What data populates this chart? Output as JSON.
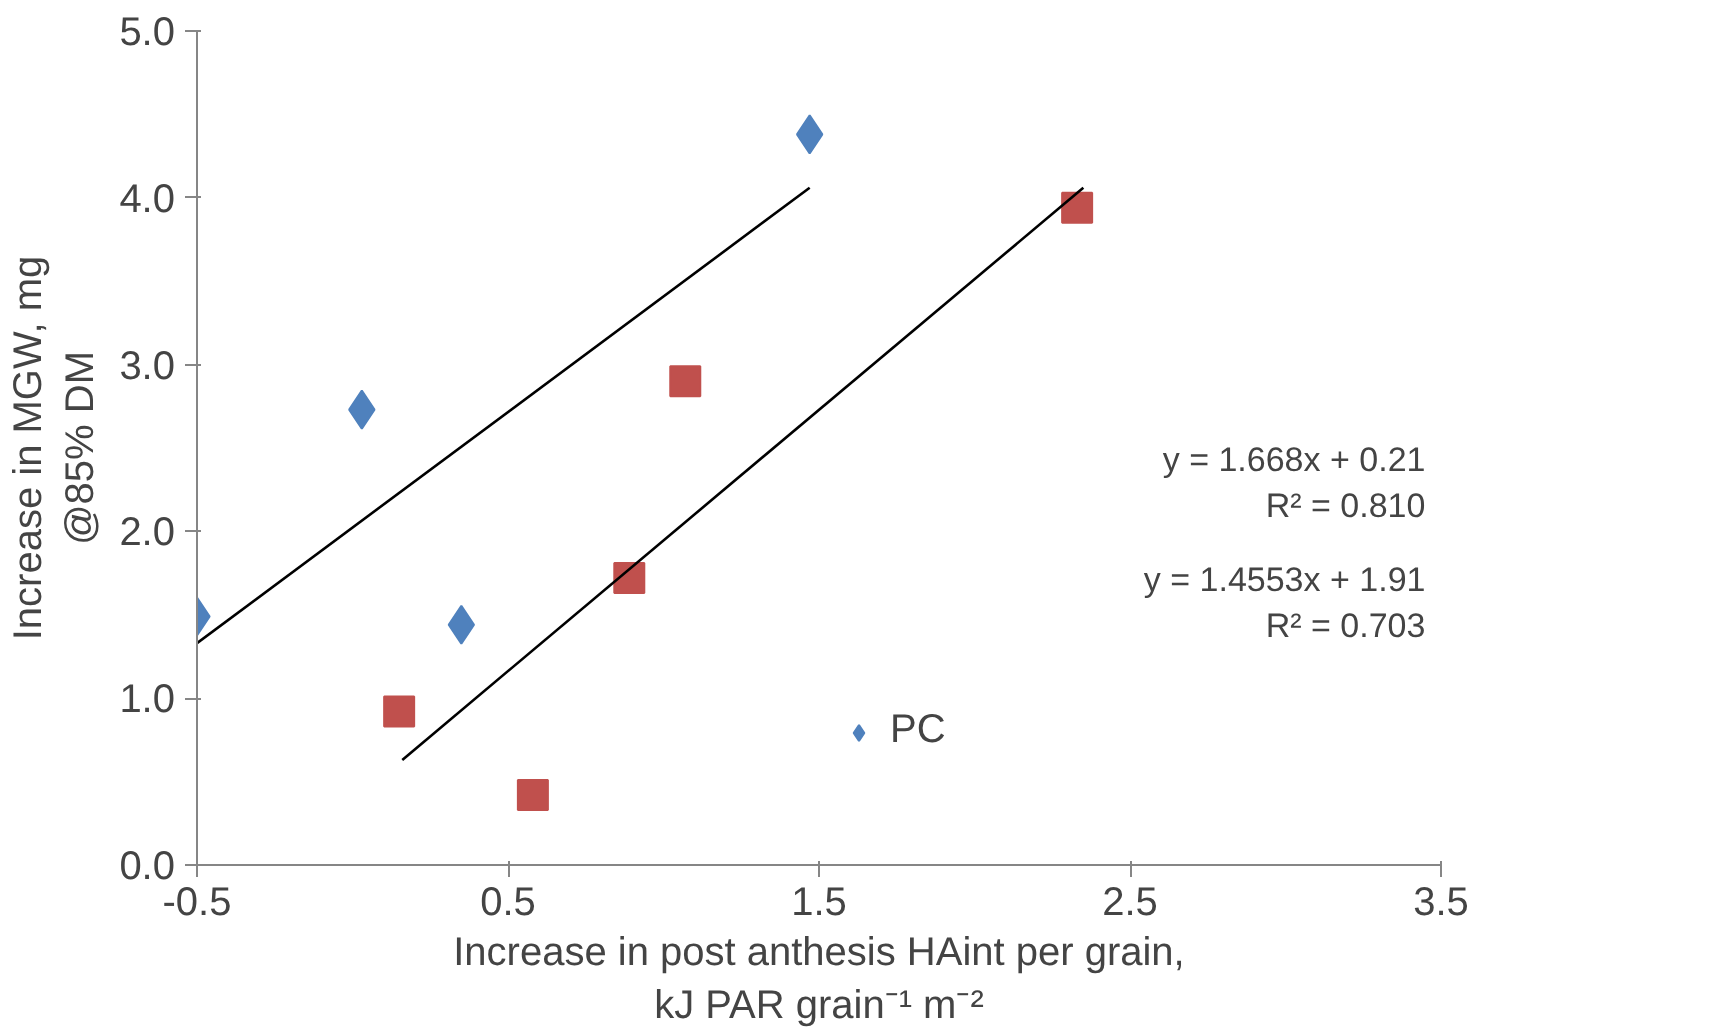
{
  "chart_data": {
    "type": "scatter",
    "xlabel": "Increase in post anthesis HAint per grain,\nkJ PAR grain⁻¹ m⁻²",
    "ylabel": "Increase in MGW, mg\n@85% DM",
    "xlim": [
      -0.5,
      3.5
    ],
    "xticks": [
      -0.5,
      0.5,
      1.5,
      2.5,
      3.5
    ],
    "ylim": [
      0,
      5
    ],
    "yticks": [
      {
        "value": 0,
        "label": "0.0"
      },
      {
        "value": 1,
        "label": "1.0"
      },
      {
        "value": 2,
        "label": "2.0"
      },
      {
        "value": 3,
        "label": "3.0"
      },
      {
        "value": 4,
        "label": "4.0"
      },
      {
        "value": 5,
        "label": "5.0"
      }
    ],
    "grid": false,
    "legend": "right",
    "series": [
      {
        "color": "#c0504d",
        "marker": "square",
        "x": [
          0.15,
          0.58,
          0.89,
          1.07,
          2.33
        ],
        "values": [
          0.92,
          0.42,
          1.72,
          2.9,
          3.94
        ]
      },
      {
        "name": "PC",
        "color": "#4f81bd",
        "marker": "diamond",
        "x": [
          -0.5,
          0.03,
          0.35,
          1.47
        ],
        "values": [
          1.49,
          2.73,
          1.44,
          4.38
        ]
      },
      {
        "type": "line",
        "color": "#000000",
        "x": [
          -0.5,
          1.47
        ],
        "values": [
          1.33,
          4.06
        ]
      },
      {
        "type": "line",
        "color": "#000000",
        "x": [
          0.16,
          2.35
        ],
        "values": [
          0.63,
          4.06
        ]
      }
    ],
    "annotations": [
      "y = 1.668x + 0.21\nR² = 0.810",
      "y = 1.4553x + 1.91\nR² = 0.703"
    ]
  }
}
